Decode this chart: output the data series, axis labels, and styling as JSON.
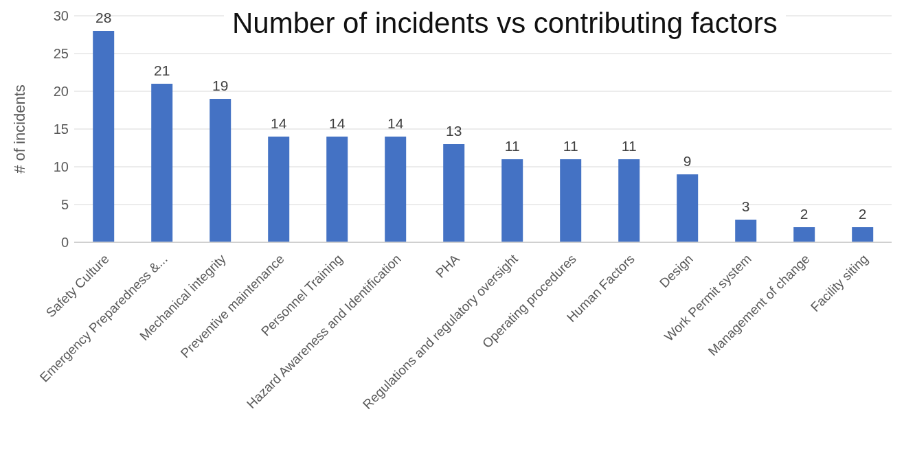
{
  "chart_data": {
    "type": "bar",
    "title": "Number of incidents vs contributing factors",
    "ylabel": "# of incidents",
    "categories": [
      "Safety Culture",
      "Emergency Preparedness &...",
      "Mechanical integrity",
      "Preventive maintenance",
      "Personnel Training",
      "Hazard Awareness and Identification",
      "PHA",
      "Regulations and regulatory oversight",
      "Operating procedures",
      "Human Factors",
      "Design",
      "Work Permit system",
      "Management of change",
      "Facility siting"
    ],
    "values": [
      28,
      21,
      19,
      14,
      14,
      14,
      13,
      11,
      11,
      11,
      9,
      3,
      2,
      2
    ],
    "color": "#4472c4",
    "ylim": [
      0,
      30
    ],
    "yticks": [
      0,
      5,
      10,
      15,
      20,
      25,
      30
    ],
    "grid": "y",
    "data_labels": true
  }
}
